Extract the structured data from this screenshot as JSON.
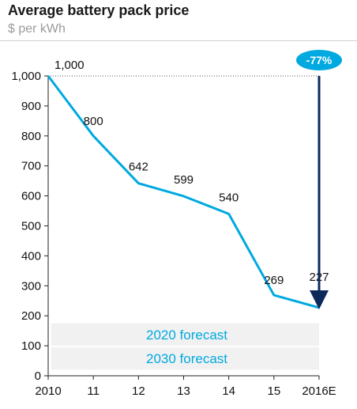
{
  "header": {
    "title": "Average battery pack price",
    "subtitle": "$ per kWh"
  },
  "chart_data": {
    "type": "line",
    "title": "Average battery pack price",
    "subtitle": "$ per kWh",
    "xlabel": "",
    "ylabel": "",
    "x": [
      "2010",
      "11",
      "12",
      "13",
      "14",
      "15",
      "2016E"
    ],
    "y_ticks": [
      "0",
      "100",
      "200",
      "300",
      "400",
      "500",
      "600",
      "700",
      "800",
      "900",
      "1,000"
    ],
    "ylim": [
      0,
      1000
    ],
    "series": [
      {
        "values": [
          1000,
          800,
          642,
          599,
          540,
          269,
          227
        ],
        "data_labels": [
          "1,000",
          "800",
          "642",
          "599",
          "540",
          "269",
          "227"
        ],
        "color": "#00a9e0"
      }
    ],
    "reference_line": {
      "value": 1000,
      "style": "dotted"
    },
    "change_annotation": {
      "label": "-77%",
      "from": 1000,
      "to": 227,
      "at": "2016E",
      "badge_color": "#00a9e0",
      "arrow_color": "#0b2a5b"
    },
    "forecast_bands": [
      {
        "label": "2020 forecast",
        "range": [
          100,
          175
        ]
      },
      {
        "label": "2030 forecast",
        "range": [
          20,
          95
        ]
      }
    ],
    "grid": false,
    "legend": "none"
  }
}
